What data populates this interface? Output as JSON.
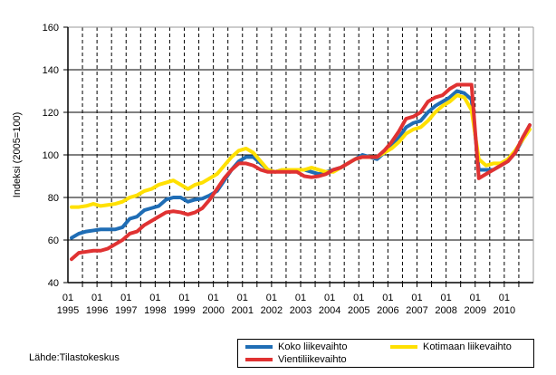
{
  "chart_data": {
    "type": "line",
    "ylabel": "Indeksi (2005=100)",
    "xlabel": "",
    "ylim": [
      40,
      160
    ],
    "yticks": [
      40,
      60,
      80,
      100,
      120,
      140,
      160
    ],
    "x_start": "1995-01",
    "x_frequency": "quarterly",
    "xtick_labels": [
      [
        "01",
        "1995"
      ],
      [
        "01",
        "1996"
      ],
      [
        "01",
        "1997"
      ],
      [
        "01",
        "1998"
      ],
      [
        "01",
        "1999"
      ],
      [
        "01",
        "2000"
      ],
      [
        "01",
        "2001"
      ],
      [
        "01",
        "2002"
      ],
      [
        "01",
        "2003"
      ],
      [
        "01",
        "2004"
      ],
      [
        "01",
        "2005"
      ],
      [
        "01",
        "2006"
      ],
      [
        "01",
        "2007"
      ],
      [
        "01",
        "2008"
      ],
      [
        "01",
        "2009"
      ],
      [
        "01",
        "2010"
      ]
    ],
    "grid": "horizontal solid, vertical dashed",
    "legend_position": "bottom-right",
    "series": [
      {
        "name": "Koko liikevaihto",
        "color": "#1F6DB5",
        "values": [
          61,
          63,
          64,
          64.5,
          65,
          65,
          65,
          66,
          70,
          71,
          74,
          75,
          76,
          79,
          80,
          80,
          78,
          79,
          79.5,
          81,
          83,
          88,
          93,
          97,
          99,
          99,
          96,
          93,
          92,
          93,
          92,
          93,
          93,
          92,
          91,
          92,
          93,
          94,
          96,
          98,
          100,
          99,
          98,
          101,
          104,
          108,
          113,
          115,
          116,
          120,
          123,
          125,
          127,
          130,
          129,
          126,
          93,
          93,
          93,
          95,
          97,
          101,
          107,
          114
        ]
      },
      {
        "name": "Kotimaan liikevaihto",
        "color": "#FFE000",
        "values": [
          75.5,
          75.5,
          76,
          77,
          76,
          76.5,
          77,
          78,
          80,
          81,
          83,
          84,
          86,
          87,
          88,
          86,
          84,
          86,
          87,
          89,
          91,
          95,
          99,
          102,
          103,
          101,
          97,
          93,
          92,
          93,
          93,
          93,
          93,
          94,
          93,
          92,
          92,
          94,
          96,
          98,
          99,
          99,
          99,
          101,
          103,
          106,
          110,
          112,
          113,
          116,
          120,
          123,
          125,
          128,
          127,
          121,
          98,
          95,
          96,
          96,
          98,
          102,
          107,
          112
        ]
      },
      {
        "name": "Vientiliikevaihto",
        "color": "#E03232",
        "values": [
          51,
          54,
          54.5,
          55,
          55,
          56,
          58,
          60,
          63,
          64,
          67,
          69,
          71,
          73,
          73.5,
          73,
          72,
          73,
          75,
          79,
          84,
          89,
          93,
          96,
          96,
          95,
          93,
          92,
          92,
          92,
          92,
          92,
          90,
          89.5,
          90,
          91,
          93,
          94,
          96,
          98,
          99,
          99,
          99,
          102,
          106,
          111,
          117,
          118,
          120,
          125,
          127,
          128,
          131,
          133,
          133,
          133,
          89,
          91,
          93,
          95,
          97,
          101,
          108,
          114
        ]
      }
    ]
  },
  "source": "Lähde:Tilastokeskus"
}
